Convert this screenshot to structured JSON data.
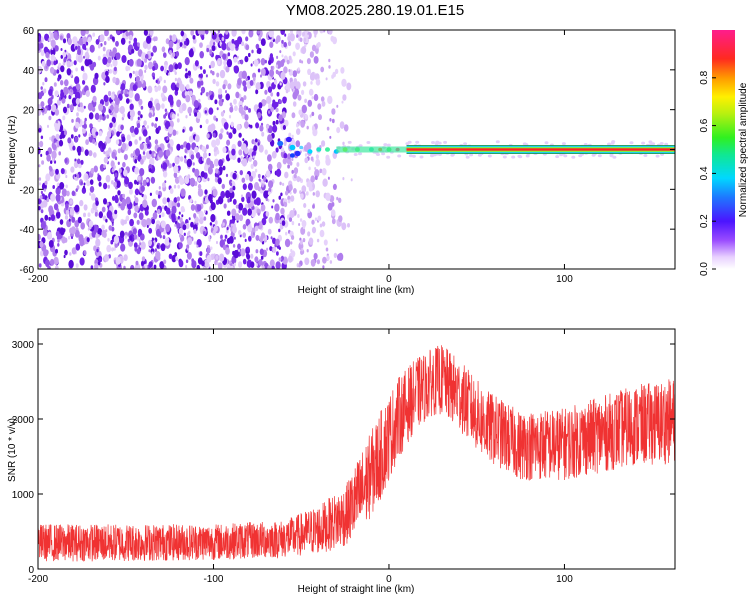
{
  "title": "YM08.2025.280.19.01.E15",
  "chart_data": [
    {
      "type": "heatmap",
      "name": "spectrogram",
      "xlabel": "Height of straight line (km)",
      "ylabel": "Frequency (Hz)",
      "xlim": [
        -200,
        163
      ],
      "ylim": [
        -60,
        60
      ],
      "xticks": [
        -200,
        -100,
        0,
        100
      ],
      "yticks": [
        -60,
        -40,
        -20,
        0,
        20,
        40,
        60
      ],
      "colorbar": {
        "label": "Normalized spectral amplitude",
        "range": [
          0,
          1
        ],
        "ticks": [
          0,
          0.2,
          0.4,
          0.6,
          0.8
        ],
        "tick_labels": [
          "0.0",
          "0.2",
          "0.4",
          "0.6",
          "0.8"
        ]
      },
      "features": {
        "noise_region_x": [
          -200,
          -25
        ],
        "signal_line_frequency": 0,
        "signal_start_x": -60,
        "signal_strong_from_x": 10
      },
      "grid": false
    },
    {
      "type": "line",
      "name": "snr",
      "xlabel": "Height of straight line (km)",
      "ylabel": "SNR (10 * v/v)",
      "xlim": [
        -200,
        163
      ],
      "ylim": [
        0,
        3200
      ],
      "xticks": [
        -200,
        -100,
        0,
        100
      ],
      "yticks": [
        0,
        1000,
        2000,
        3000
      ],
      "color": "#f03232",
      "envelope": {
        "x": [
          -200,
          -150,
          -100,
          -60,
          -40,
          -25,
          -15,
          -5,
          5,
          15,
          25,
          30,
          40,
          55,
          75,
          100,
          120,
          140,
          163
        ],
        "low": [
          100,
          100,
          120,
          150,
          200,
          300,
          500,
          900,
          1450,
          1850,
          2050,
          2050,
          1850,
          1450,
          1180,
          1180,
          1280,
          1380,
          1400
        ],
        "high": [
          600,
          600,
          600,
          650,
          850,
          1100,
          1600,
          2100,
          2550,
          2800,
          2950,
          3000,
          2800,
          2400,
          2100,
          2150,
          2300,
          2450,
          2550
        ]
      },
      "grid": false
    }
  ]
}
